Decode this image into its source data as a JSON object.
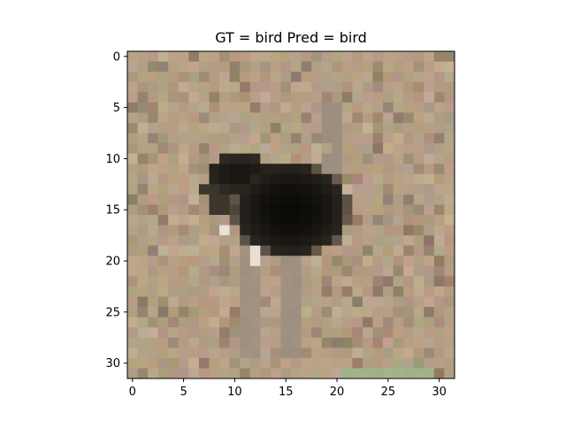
{
  "title": "GT = bird Pred = bird",
  "image": {
    "description_type": "ostrich on sandy ground, pixelated 32x32",
    "colors": {
      "ground_light": "#c2ad94",
      "ground_mid": "#b09a80",
      "ground_dark": "#8d7a66",
      "body": "#0a0a08",
      "neck_leg": "#948a80",
      "highlight": "#e8e0d4",
      "grass": "#9ab88a"
    }
  },
  "axes": {
    "x_ticks": [
      "0",
      "5",
      "10",
      "15",
      "20",
      "25",
      "30"
    ],
    "y_ticks": [
      "0",
      "5",
      "10",
      "15",
      "20",
      "25",
      "30"
    ]
  }
}
